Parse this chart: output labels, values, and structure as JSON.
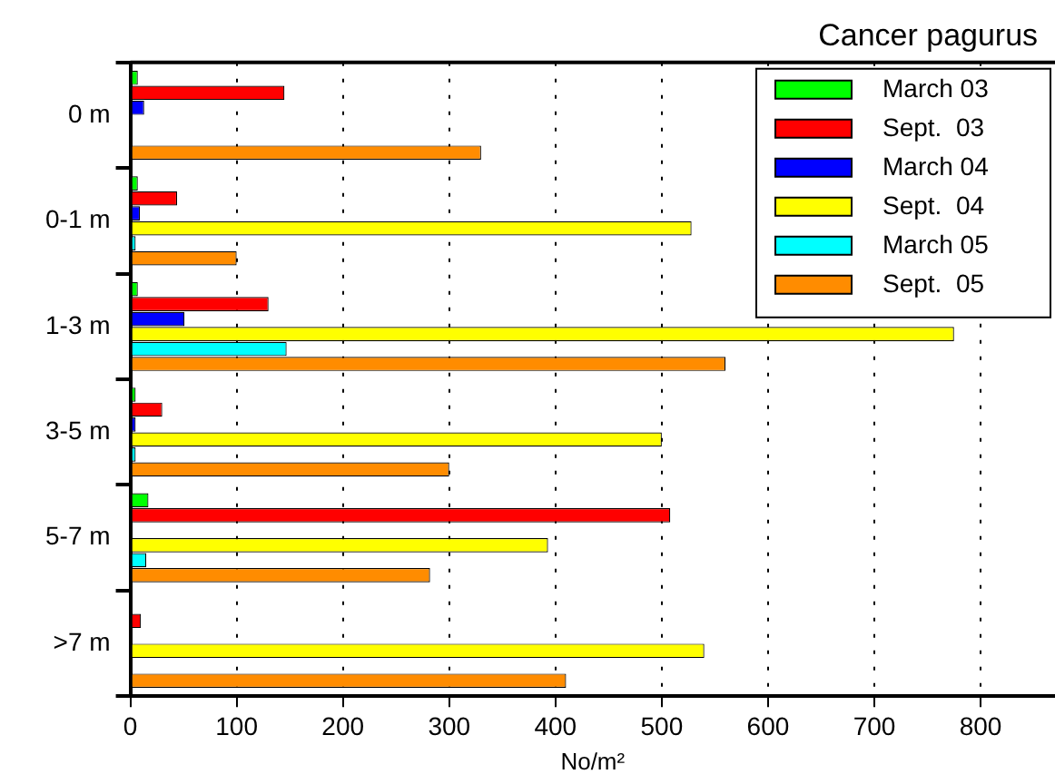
{
  "chart_data": {
    "type": "bar",
    "orientation": "horizontal",
    "title": "Cancer pagurus",
    "xlabel": "No/m²",
    "categories": [
      "0 m",
      "0-1 m",
      "1-3 m",
      "3-5 m",
      "5-7 m",
      ">7 m"
    ],
    "series": [
      {
        "name": "March 03",
        "color": "#00ff00",
        "values": [
          7,
          7,
          7,
          5,
          17,
          null
        ]
      },
      {
        "name": "Sept.  03",
        "color": "#ff0000",
        "values": [
          145,
          44,
          130,
          30,
          508,
          10
        ]
      },
      {
        "name": "March 04",
        "color": "#0000ff",
        "values": [
          13,
          9,
          51,
          5,
          null,
          null
        ]
      },
      {
        "name": "Sept.  04",
        "color": "#ffff00",
        "values": [
          null,
          528,
          775,
          500,
          393,
          540
        ]
      },
      {
        "name": "March 05",
        "color": "#00ffff",
        "values": [
          null,
          5,
          147,
          5,
          15,
          null
        ]
      },
      {
        "name": "Sept.  05",
        "color": "#ff8c00",
        "values": [
          330,
          100,
          560,
          300,
          282,
          410
        ]
      }
    ],
    "xlim": [
      0,
      870
    ],
    "xticks": [
      0,
      100,
      200,
      300,
      400,
      500,
      600,
      700,
      800
    ],
    "grid": "x",
    "legend": "top right"
  }
}
